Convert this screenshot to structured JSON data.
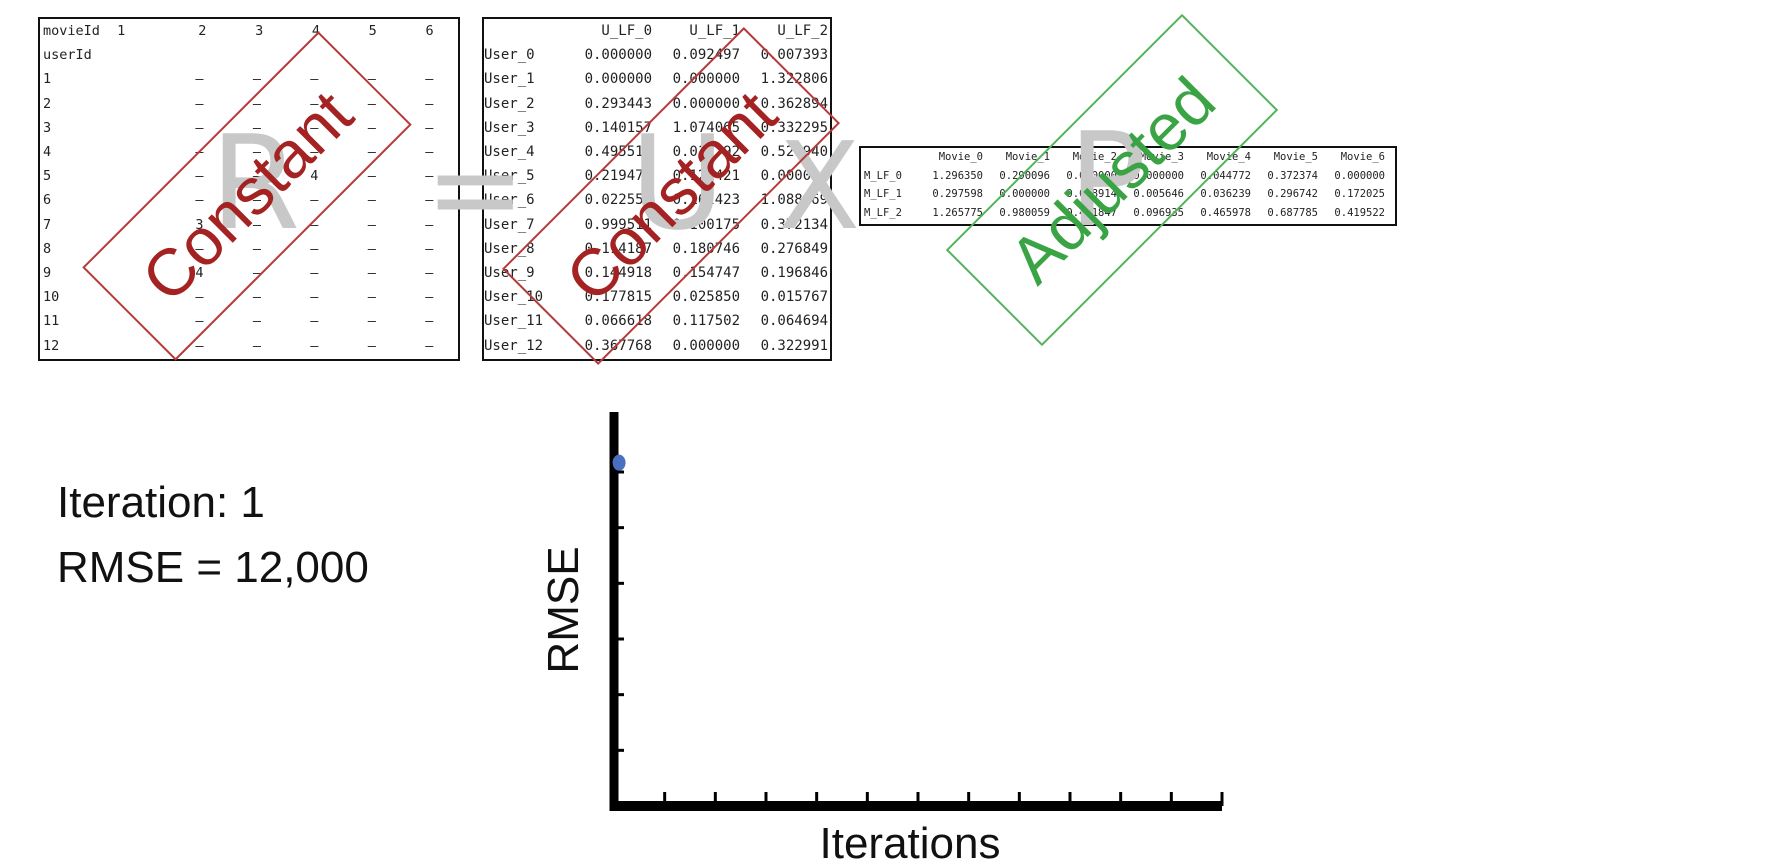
{
  "R_table": {
    "header": [
      "movieId",
      "1",
      "2",
      "3",
      "4",
      "5",
      "6"
    ],
    "subheader": "userId",
    "rows": [
      [
        "1",
        "",
        "–",
        "–",
        "–",
        "–",
        "–"
      ],
      [
        "2",
        "",
        "–",
        "–",
        "–",
        "–",
        "–"
      ],
      [
        "3",
        "",
        "–",
        "–",
        "–",
        "–",
        "–"
      ],
      [
        "4",
        "",
        "–",
        "–",
        "–",
        "–",
        "–"
      ],
      [
        "5",
        "",
        "–",
        "–",
        "4",
        "–",
        "–"
      ],
      [
        "6",
        "",
        "–",
        "–",
        "–",
        "–",
        "–"
      ],
      [
        "7",
        "",
        "3",
        "–",
        "–",
        "–",
        "–"
      ],
      [
        "8",
        "",
        "–",
        "–",
        "–",
        "–",
        "–"
      ],
      [
        "9",
        "",
        "4",
        "–",
        "–",
        "–",
        "–"
      ],
      [
        "10",
        "",
        "–",
        "–",
        "–",
        "–",
        "–"
      ],
      [
        "11",
        "",
        "–",
        "–",
        "–",
        "–",
        "–"
      ],
      [
        "12",
        "",
        "–",
        "–",
        "–",
        "–",
        "–"
      ]
    ]
  },
  "U_table": {
    "header": [
      "",
      "U_LF_0",
      "U_LF_1",
      "U_LF_2"
    ],
    "rows": [
      [
        "User_0",
        "0.000000",
        "0.092497",
        "0.007393"
      ],
      [
        "User_1",
        "0.000000",
        "0.000000",
        "1.322806"
      ],
      [
        "User_2",
        "0.293443",
        "0.000000",
        "0.362894"
      ],
      [
        "User_3",
        "0.140157",
        "1.074065",
        "0.332295"
      ],
      [
        "User_4",
        "0.495512",
        "0.017792",
        "0.529940"
      ],
      [
        "User_5",
        "0.219477",
        "0.121421",
        "0.000000"
      ],
      [
        "User_6",
        "0.022552",
        "0.162423",
        "1.088869"
      ],
      [
        "User_7",
        "0.999511",
        "0.100175",
        "0.372134"
      ],
      [
        "User_8",
        "0.114187",
        "0.180746",
        "0.276849"
      ],
      [
        "User_9",
        "0.144918",
        "0.154747",
        "0.196846"
      ],
      [
        "User_10",
        "0.177815",
        "0.025850",
        "0.015767"
      ],
      [
        "User_11",
        "0.066618",
        "0.117502",
        "0.064694"
      ],
      [
        "User_12",
        "0.367768",
        "0.000000",
        "0.322991"
      ]
    ]
  },
  "P_table": {
    "header": [
      "",
      "Movie_0",
      "Movie_1",
      "Movie_2",
      "Movie_3",
      "Movie_4",
      "Movie_5",
      "Movie_6"
    ],
    "rows": [
      [
        "M_LF_0",
        "1.296350",
        "0.290096",
        "0.000000",
        "0.000000",
        "0.044772",
        "0.372374",
        "0.000000"
      ],
      [
        "M_LF_1",
        "0.297598",
        "0.000000",
        "0.008914",
        "0.005646",
        "0.036239",
        "0.296742",
        "0.172025"
      ],
      [
        "M_LF_2",
        "1.265775",
        "0.980059",
        "0.471847",
        "0.096935",
        "0.465978",
        "0.687785",
        "0.419522"
      ]
    ]
  },
  "equation": {
    "R": "R",
    "equals": "=",
    "U": "U",
    "times": "X",
    "P": "P"
  },
  "stamps": {
    "R": "Constant",
    "U": "Constant",
    "P": "Adjusted"
  },
  "colors": {
    "constant": "#a52222",
    "adjusted": "#3aa445",
    "point": "#4a6fbf"
  },
  "status": {
    "iteration": "Iteration: 1",
    "rmse": "RMSE = 12,000"
  },
  "chart_data": {
    "type": "scatter",
    "xlabel": "Iterations",
    "ylabel": "RMSE",
    "x_ticks": 12,
    "y_ticks": 6,
    "points": [
      {
        "x": 0.1,
        "y": 6.1
      }
    ],
    "xlim": [
      0,
      12
    ],
    "ylim": [
      0,
      7
    ]
  }
}
